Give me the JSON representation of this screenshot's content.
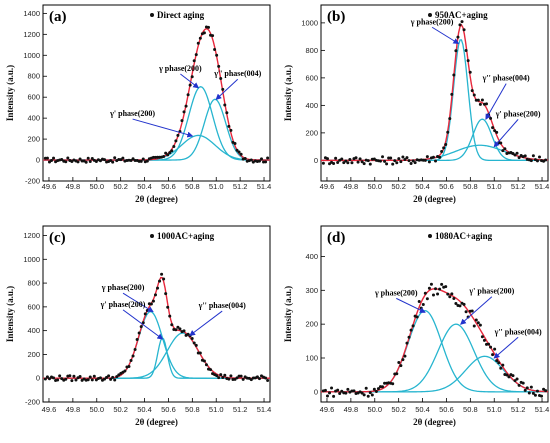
{
  "colors": {
    "fit": "#e8283c",
    "component": "#27b5cf",
    "data_point": "#111111",
    "arrow": "#2233cc",
    "frame": "#000000"
  },
  "chart_data": [
    {
      "type": "scatter",
      "panel_label": "(a)",
      "legend": "Direct aging",
      "xlabel": "2θ (degree)",
      "ylabel": "Intensity (a.u.)",
      "xlim": [
        49.55,
        51.45
      ],
      "ylim": [
        -200,
        1480
      ],
      "xticks": [
        "49.6",
        "49.8",
        "50.0",
        "50.2",
        "50.4",
        "50.6",
        "50.8",
        "51.0",
        "51.2",
        "51.4"
      ],
      "yticks": [
        "-200",
        "0",
        "200",
        "400",
        "600",
        "800",
        "1000",
        "1200",
        "1400"
      ],
      "components": [
        {
          "center": 50.87,
          "amplitude": 700,
          "width": 0.1
        },
        {
          "center": 50.99,
          "amplitude": 580,
          "width": 0.09
        },
        {
          "center": 50.85,
          "amplitude": 235,
          "width": 0.14
        }
      ],
      "noise_amplitude": 22,
      "annotations": [
        {
          "text": "γ phase(200)",
          "x": 50.7,
          "y": 850,
          "target_x": 50.85,
          "target_y": 690
        },
        {
          "text": "γ'' phase(004)",
          "x": 51.18,
          "y": 800,
          "target_x": 51.0,
          "target_y": 580
        },
        {
          "text": "γ' phase(200)",
          "x": 50.3,
          "y": 420,
          "target_x": 50.8,
          "target_y": 230
        }
      ]
    },
    {
      "type": "scatter",
      "panel_label": "(b)",
      "legend": "950AC+aging",
      "xlabel": "2θ (degree)",
      "ylabel": "Intensity (a.u.)",
      "xlim": [
        49.55,
        51.45
      ],
      "ylim": [
        -150,
        1130
      ],
      "xticks": [
        "49.6",
        "49.8",
        "50.0",
        "50.2",
        "50.4",
        "50.6",
        "50.8",
        "51.0",
        "51.2",
        "51.4"
      ],
      "yticks": [
        "0",
        "200",
        "400",
        "600",
        "800",
        "1000"
      ],
      "components": [
        {
          "center": 50.72,
          "amplitude": 880,
          "width": 0.06
        },
        {
          "center": 50.9,
          "amplitude": 300,
          "width": 0.08
        },
        {
          "center": 50.88,
          "amplitude": 110,
          "width": 0.2
        }
      ],
      "noise_amplitude": 28,
      "annotations": [
        {
          "text": "γ phase(200)",
          "x": 50.48,
          "y": 990,
          "target_x": 50.7,
          "target_y": 850
        },
        {
          "text": "γ'' phase(004)",
          "x": 51.1,
          "y": 580,
          "target_x": 50.93,
          "target_y": 300
        },
        {
          "text": "γ' phase(200)",
          "x": 51.2,
          "y": 320,
          "target_x": 51.0,
          "target_y": 100
        }
      ]
    },
    {
      "type": "scatter",
      "panel_label": "(c)",
      "legend": "1000AC+aging",
      "xlabel": "2θ (degree)",
      "ylabel": "Intensity (a.u.)",
      "xlim": [
        49.55,
        51.45
      ],
      "ylim": [
        -200,
        1280
      ],
      "xticks": [
        "49.6",
        "49.8",
        "50.0",
        "50.2",
        "50.4",
        "50.6",
        "50.8",
        "51.0",
        "51.2",
        "51.4"
      ],
      "yticks": [
        "-200",
        "0",
        "200",
        "400",
        "600",
        "800",
        "1000",
        "1200"
      ],
      "components": [
        {
          "center": 50.45,
          "amplitude": 560,
          "width": 0.1
        },
        {
          "center": 50.55,
          "amplitude": 340,
          "width": 0.04
        },
        {
          "center": 50.72,
          "amplitude": 380,
          "width": 0.13
        }
      ],
      "noise_amplitude": 22,
      "annotations": [
        {
          "text": "γ phase(200)",
          "x": 50.22,
          "y": 740,
          "target_x": 50.47,
          "target_y": 560
        },
        {
          "text": "γ' phase(200)",
          "x": 50.22,
          "y": 600,
          "target_x": 50.55,
          "target_y": 330
        },
        {
          "text": "γ'' phase(004)",
          "x": 51.05,
          "y": 590,
          "target_x": 50.78,
          "target_y": 360
        }
      ]
    },
    {
      "type": "scatter",
      "panel_label": "(d)",
      "legend": "1080AC+aging",
      "xlabel": "2θ (degree)",
      "ylabel": "Intensity (a.u.)",
      "xlim": [
        49.55,
        51.45
      ],
      "ylim": [
        -30,
        490
      ],
      "xticks": [
        "49.6",
        "49.8",
        "50.0",
        "50.2",
        "50.4",
        "50.6",
        "50.8",
        "51.0",
        "51.2",
        "51.4"
      ],
      "yticks": [
        "0",
        "100",
        "200",
        "300",
        "400"
      ],
      "components": [
        {
          "center": 50.42,
          "amplitude": 240,
          "width": 0.14
        },
        {
          "center": 50.68,
          "amplitude": 200,
          "width": 0.15
        },
        {
          "center": 50.92,
          "amplitude": 105,
          "width": 0.16
        }
      ],
      "noise_amplitude": 14,
      "annotations": [
        {
          "text": "γ phase(200)",
          "x": 50.18,
          "y": 285,
          "target_x": 50.42,
          "target_y": 235
        },
        {
          "text": "γ' phase(200)",
          "x": 50.98,
          "y": 290,
          "target_x": 50.72,
          "target_y": 200
        },
        {
          "text": "γ'' phase(004)",
          "x": 51.2,
          "y": 170,
          "target_x": 51.0,
          "target_y": 100
        }
      ]
    }
  ]
}
